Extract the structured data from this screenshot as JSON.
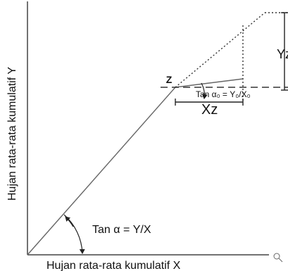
{
  "diagram": {
    "x_axis_label": "Hujan rata-rata kumulatif X",
    "y_axis_label": "Hujan rata-rata kumulatif Y",
    "angle_alpha_label": "Tan α = Y/X",
    "angle_alpha0_label": "Tan α₀ = Y₀/X₀",
    "break_point_label": "Z",
    "xz_label": "Xz",
    "yz_label": "Yz",
    "zoom_icon": "magnifier-icon"
  }
}
